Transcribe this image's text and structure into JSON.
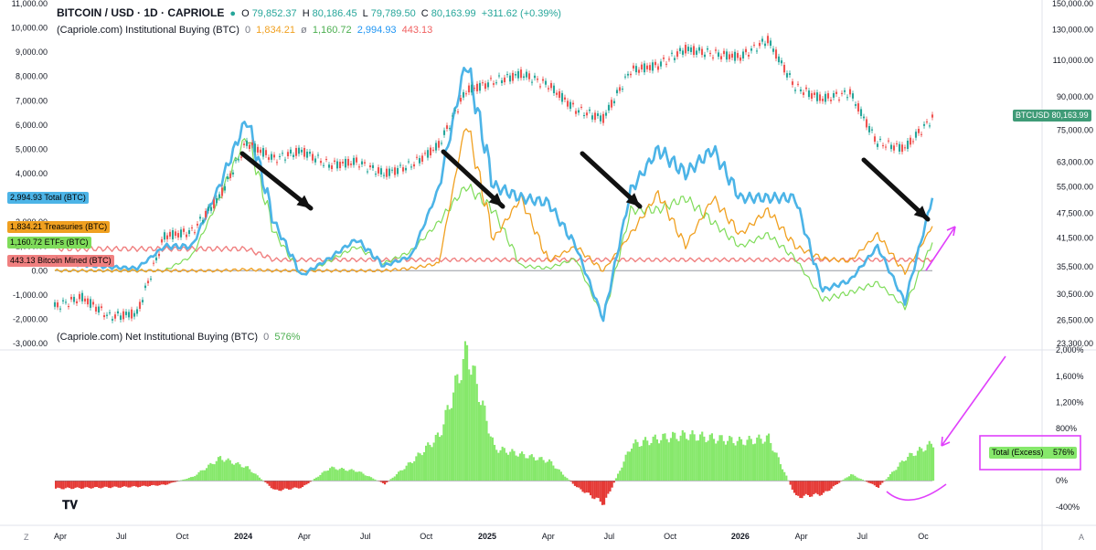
{
  "header": {
    "symbol": "BITCOIN / USD · 1D · CAPRIOLE",
    "ohlc": {
      "o_label": "O",
      "o": "79,852.37",
      "h_label": "H",
      "h": "80,186.45",
      "l_label": "L",
      "l": "79,789.50",
      "c_label": "C",
      "c": "80,163.99",
      "change": "+311.62 (+0.39%)"
    },
    "indicator1": {
      "name": "(Capriole.com) Institutional Buying (BTC)",
      "zero": "0",
      "treasuries": "1,834.21",
      "ø": "ø",
      "etfs": "1,160.72",
      "total": "2,994.93",
      "mined": "443.13"
    },
    "indicator2": {
      "name": "(Capriole.com) Net Institutional Buying (BTC)",
      "zero": "0",
      "value": "576%"
    }
  },
  "colors": {
    "total": "#4cb4e7",
    "treasuries": "#f0a020",
    "etfs": "#7fdc5a",
    "mined": "#f08080",
    "up": "#26a69a",
    "down": "#ef5350",
    "pos_hist": "#86e86b",
    "neg_hist": "#e53935",
    "arrow": "#111111",
    "annot": "#e040fb",
    "btc_tag": "#3f9b77"
  },
  "icons": {
    "logo": "tradingview-logo-icon",
    "arrows": "arrow-icon",
    "annotation": "annotation-arrow-icon"
  },
  "chart_data": [
    {
      "type": "line",
      "title": "BITCOIN / USD · 1D · CAPRIOLE",
      "x_ticks": [
        "Apr",
        "Jul",
        "Oct",
        "2024",
        "Apr",
        "Jul",
        "Oct",
        "2025",
        "Apr",
        "Jul",
        "Oct",
        "2026",
        "Apr",
        "Jul",
        "Oc"
      ],
      "left_axis_ticks": [
        "11,000.00",
        "10,000.00",
        "9,000.00",
        "8,000.00",
        "7,000.00",
        "6,000.00",
        "5,000.00",
        "4,000.00",
        "2,000.00",
        "1,000.00",
        "0.00",
        "-1,000.00",
        "-2,000.00",
        "-3,000.00"
      ],
      "right_axis_ticks": [
        "150,000.00",
        "130,000.00",
        "110,000.00",
        "90,000.00",
        "75,000.00",
        "63,000.00",
        "55,000.00",
        "47,500.00",
        "41,500.00",
        "35,500.00",
        "30,500.00",
        "26,500.00",
        "23,300.00"
      ],
      "left_ylim": [
        -3000,
        11000
      ],
      "right_ylim": [
        23300,
        150000
      ],
      "right_scale": "log",
      "x": [
        "2023-04",
        "2023-06",
        "2023-08",
        "2023-10",
        "2023-12",
        "2024-01",
        "2024-02",
        "2024-03",
        "2024-04",
        "2024-05",
        "2024-06",
        "2024-07",
        "2024-08",
        "2024-09",
        "2024-10",
        "2024-11",
        "2024-12",
        "2025-01",
        "2025-02",
        "2025-03",
        "2025-04",
        "2025-05",
        "2025-06",
        "2025-07",
        "2025-08",
        "2025-09",
        "2025-10",
        "2025-11",
        "2025-12",
        "2026-01",
        "2026-02",
        "2026-03",
        "2026-04"
      ],
      "series": [
        {
          "name": "Total (BTC)",
          "values": [
            300,
            250,
            150,
            100,
            1000,
            1000,
            3500,
            6300,
            2000,
            -200,
            500,
            1300,
            200,
            600,
            3400,
            8700,
            3500,
            3000,
            2800,
            1000,
            -2000,
            3300,
            5000,
            4000,
            5000,
            3000,
            3000,
            3000,
            -800,
            -400,
            1000,
            -1300,
            2995
          ]
        },
        {
          "name": "Treasuries (BTC)",
          "values": [
            0,
            0,
            0,
            0,
            0,
            0,
            0,
            50,
            0,
            0,
            0,
            0,
            0,
            100,
            300,
            6200,
            1300,
            3000,
            400,
            1000,
            0,
            1500,
            3200,
            1000,
            3000,
            1500,
            2500,
            1000,
            500,
            400,
            1500,
            -100,
            1834
          ]
        },
        {
          "name": "ETFs (BTC)",
          "values": [
            0,
            0,
            0,
            0,
            0,
            600,
            3000,
            5600,
            1600,
            -200,
            400,
            1000,
            300,
            800,
            2000,
            3500,
            2500,
            200,
            100,
            500,
            -2000,
            2500,
            2500,
            3000,
            2000,
            1000,
            1500,
            500,
            -1200,
            -900,
            -500,
            -1500,
            1161
          ]
        },
        {
          "name": "Bitcoin Mined (BTC)",
          "values": [
            900,
            900,
            900,
            900,
            900,
            900,
            900,
            900,
            450,
            450,
            450,
            450,
            450,
            450,
            450,
            450,
            450,
            450,
            450,
            450,
            450,
            450,
            450,
            450,
            450,
            450,
            450,
            450,
            450,
            450,
            450,
            450,
            443
          ]
        },
        {
          "name": "BTCUSD",
          "values": [
            28500,
            30000,
            27000,
            27500,
            42000,
            43000,
            52000,
            70000,
            64000,
            67000,
            62000,
            63000,
            59000,
            62000,
            69000,
            93000,
            98000,
            102000,
            96000,
            84000,
            80000,
            104000,
            107000,
            117000,
            114000,
            112000,
            123000,
            95000,
            89000,
            92000,
            70000,
            68000,
            80164
          ]
        }
      ],
      "price_tag": {
        "label": "BTCUSD",
        "value": "80,163.99"
      },
      "legend": [
        {
          "label": "Total (BTC)",
          "value": "2,994.93"
        },
        {
          "label": "Treasuries (BTC)",
          "value": "1,834.21"
        },
        {
          "label": "ETFs (BTC)",
          "value": "1,160.72"
        },
        {
          "label": "Bitcoin Mined (BTC)",
          "value": "443.13"
        }
      ]
    },
    {
      "type": "bar",
      "title": "(Capriole.com) Net Institutional Buying (BTC)",
      "right_axis_ticks": [
        "2,000%",
        "1,600%",
        "1,200%",
        "800%",
        "400%",
        "0%",
        "-400%"
      ],
      "ylim": [
        -500,
        2100
      ],
      "x": [
        "2023-04",
        "2023-06",
        "2023-08",
        "2023-10",
        "2023-12",
        "2024-01",
        "2024-02",
        "2024-03",
        "2024-04",
        "2024-05",
        "2024-06",
        "2024-07",
        "2024-08",
        "2024-09",
        "2024-10",
        "2024-11",
        "2024-12",
        "2025-01",
        "2025-02",
        "2025-03",
        "2025-04",
        "2025-05",
        "2025-06",
        "2025-07",
        "2025-08",
        "2025-09",
        "2025-10",
        "2025-11",
        "2025-12",
        "2026-01",
        "2026-02",
        "2026-03",
        "2026-04"
      ],
      "values": [
        -120,
        -110,
        -100,
        -90,
        -60,
        60,
        350,
        200,
        -150,
        -100,
        200,
        150,
        -50,
        300,
        700,
        2000,
        500,
        400,
        300,
        -100,
        -350,
        550,
        650,
        700,
        650,
        600,
        650,
        -250,
        -200,
        100,
        -100,
        350,
        576
      ],
      "series_label": {
        "label": "Total (Excess)",
        "value": "576%"
      }
    }
  ]
}
